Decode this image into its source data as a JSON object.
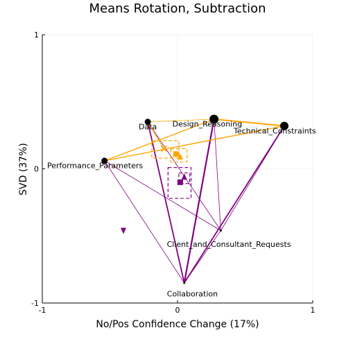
{
  "chart_data": {
    "type": "scatter",
    "title": "Means Rotation, Subtraction",
    "xlabel": "No/Pos Confidence Change (17%)",
    "ylabel": "SVD (37%)",
    "xlim": [
      -1,
      1
    ],
    "ylim": [
      -1,
      1
    ],
    "xticks": [
      {
        "value": -1,
        "label": "-1"
      },
      {
        "value": 0,
        "label": "0"
      },
      {
        "value": 1,
        "label": "1"
      }
    ],
    "yticks": [
      {
        "value": -1,
        "label": "-1"
      },
      {
        "value": 0,
        "label": "0"
      },
      {
        "value": 1,
        "label": "1"
      }
    ],
    "grid": true,
    "colors": {
      "orange": "#FFA500",
      "purple": "#800080",
      "black": "#000000"
    },
    "nodes": [
      {
        "name": "Data",
        "x": -0.22,
        "y": 0.35,
        "size": 4.5,
        "label_dx": 0,
        "label_dy": 0.035
      },
      {
        "name": "Design_Reasoning",
        "x": 0.27,
        "y": 0.37,
        "size": 6.5,
        "label_dx": -0.05,
        "label_dy": 0.035
      },
      {
        "name": "Technical_Constraints",
        "x": 0.79,
        "y": 0.32,
        "size": 6,
        "label_dx": -0.07,
        "label_dy": 0.035
      },
      {
        "name": "Performance_Parameters",
        "x": -0.54,
        "y": 0.06,
        "size": 4.5,
        "label_dx": -0.07,
        "label_dy": 0.035
      },
      {
        "name": "Client_and_Consultant_Requests",
        "x": 0.32,
        "y": -0.46,
        "size": 1.5,
        "label_dx": 0.06,
        "label_dy": 0.1
      },
      {
        "name": "Collaboration",
        "x": 0.05,
        "y": -0.85,
        "size": 1.5,
        "label_dx": 0.06,
        "label_dy": 0.08
      }
    ],
    "orange_edges": [
      {
        "from": [
          -0.22,
          0.35
        ],
        "to": [
          0.27,
          0.37
        ],
        "width": 0.8
      },
      {
        "from": [
          0.27,
          0.37
        ],
        "to": [
          0.79,
          0.32
        ],
        "width": 2
      },
      {
        "from": [
          -0.54,
          0.06
        ],
        "to": [
          0.79,
          0.32
        ],
        "width": 1.4
      },
      {
        "from": [
          -0.54,
          0.06
        ],
        "to": [
          0.27,
          0.37
        ],
        "width": 1.4
      },
      {
        "from": [
          -0.22,
          0.35
        ],
        "to": [
          -0.1,
          0.15
        ],
        "width": 1.2
      }
    ],
    "purple_edges": [
      {
        "from": [
          0.05,
          -0.85
        ],
        "to": [
          -0.22,
          0.35
        ],
        "width": 1.8
      },
      {
        "from": [
          0.05,
          -0.85
        ],
        "to": [
          0.27,
          0.37
        ],
        "width": 2.2
      },
      {
        "from": [
          0.05,
          -0.85
        ],
        "to": [
          0.79,
          0.32
        ],
        "width": 1.8
      },
      {
        "from": [
          0.05,
          -0.85
        ],
        "to": [
          -0.54,
          0.06
        ],
        "width": 0.8
      },
      {
        "from": [
          0.05,
          -0.85
        ],
        "to": [
          0.32,
          -0.46
        ],
        "width": 0.8
      },
      {
        "from": [
          -0.54,
          0.06
        ],
        "to": [
          0.32,
          -0.46
        ],
        "width": 0.8
      },
      {
        "from": [
          -0.22,
          0.35
        ],
        "to": [
          0.32,
          -0.46
        ],
        "width": 0.8
      },
      {
        "from": [
          0.27,
          0.37
        ],
        "to": [
          0.32,
          -0.46
        ],
        "width": 0.8
      },
      {
        "from": [
          0.79,
          0.32
        ],
        "to": [
          0.32,
          -0.46
        ],
        "width": 0.8
      }
    ],
    "orange_markers": [
      {
        "shape": "square",
        "x": -0.01,
        "y": 0.11
      },
      {
        "shape": "triangle-up",
        "x": 0.02,
        "y": 0.09
      },
      {
        "shape": "x",
        "x": -0.1,
        "y": 0.15
      }
    ],
    "orange_boxes": [
      {
        "x0": -0.19,
        "x1": 0.01,
        "y0": 0.08,
        "y1": 0.21
      },
      {
        "x0": -0.05,
        "x1": 0.07,
        "y0": 0.05,
        "y1": 0.15
      }
    ],
    "purple_markers": [
      {
        "shape": "square",
        "x": 0.02,
        "y": -0.1
      },
      {
        "shape": "triangle-up",
        "x": 0.05,
        "y": -0.06
      },
      {
        "shape": "triangle-down",
        "x": -0.4,
        "y": -0.46
      }
    ],
    "purple_boxes": [
      {
        "x0": -0.07,
        "x1": 0.1,
        "y0": -0.22,
        "y1": 0.01
      },
      {
        "x0": 0.01,
        "x1": 0.09,
        "y0": -0.11,
        "y1": -0.03
      }
    ]
  }
}
